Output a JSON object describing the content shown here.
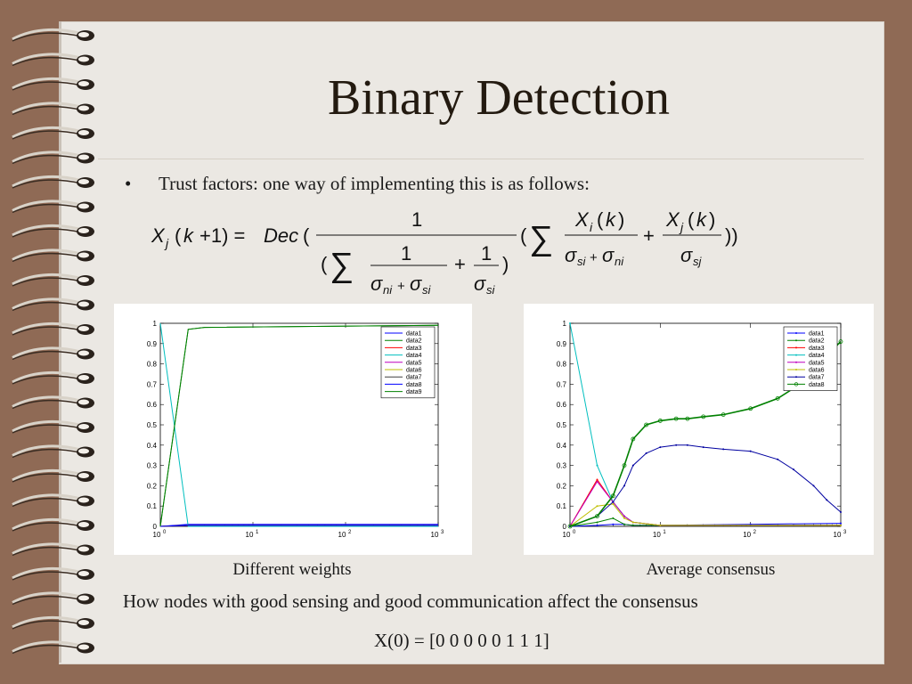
{
  "slide": {
    "title": "Binary Detection",
    "bullet": "Trust factors: one way of implementing this is as follows:",
    "bullet_marker": "•",
    "captions": [
      "Different weights",
      "Average consensus"
    ],
    "summary": "How nodes with good sensing and good communication affect the consensus",
    "initial_condition": "X(0) = [0 0 0 0 0 1 1 1]"
  },
  "colors": {
    "background": "#8f6a55",
    "paper": "#ebe8e3",
    "title": "#231a10"
  },
  "chart_data": [
    {
      "type": "line",
      "x_scale": "log",
      "xlim": [
        1,
        1000
      ],
      "ylim": [
        0,
        1
      ],
      "x_ticks": [
        "10^0",
        "10^1",
        "10^2",
        "10^3"
      ],
      "y_ticks": [
        "0",
        "0.1",
        "0.2",
        "0.3",
        "0.4",
        "0.5",
        "0.6",
        "0.7",
        "0.8",
        "0.9",
        "1"
      ],
      "legend_position": "top-right",
      "grid": false,
      "series": [
        {
          "name": "data1",
          "color": "#0000ff",
          "x": [
            1,
            2,
            1000
          ],
          "y": [
            0,
            0.01,
            0.01
          ]
        },
        {
          "name": "data2",
          "color": "#008000",
          "x": [
            1,
            2,
            3,
            1000
          ],
          "y": [
            0,
            0.97,
            0.98,
            0.99
          ]
        },
        {
          "name": "data3",
          "color": "#ff0000",
          "x": [
            1,
            2,
            1000
          ],
          "y": [
            0,
            0.005,
            0.005
          ]
        },
        {
          "name": "data4",
          "color": "#00bfbf",
          "x": [
            1,
            2,
            1000
          ],
          "y": [
            1,
            0,
            0
          ]
        },
        {
          "name": "data5",
          "color": "#bf00bf",
          "x": [
            1,
            2,
            1000
          ],
          "y": [
            0,
            0.005,
            0.005
          ]
        },
        {
          "name": "data6",
          "color": "#bfbf00",
          "x": [
            1,
            2,
            1000
          ],
          "y": [
            0,
            0.005,
            0.005
          ]
        },
        {
          "name": "data7",
          "color": "#404040",
          "x": [
            1,
            2,
            1000
          ],
          "y": [
            0,
            0.005,
            0.005
          ]
        },
        {
          "name": "data8",
          "color": "#0000ff",
          "x": [
            1,
            2,
            1000
          ],
          "y": [
            0,
            0.005,
            0.005
          ]
        },
        {
          "name": "data9",
          "color": "#008000",
          "x": [
            1,
            2,
            3,
            1000
          ],
          "y": [
            0,
            0.97,
            0.98,
            0.99
          ]
        }
      ]
    },
    {
      "type": "line",
      "x_scale": "log",
      "xlim": [
        1,
        1000
      ],
      "ylim": [
        0,
        1
      ],
      "x_ticks": [
        "10^0",
        "10^1",
        "10^2",
        "10^3"
      ],
      "y_ticks": [
        "0",
        "0.1",
        "0.2",
        "0.3",
        "0.4",
        "0.5",
        "0.6",
        "0.7",
        "0.8",
        "0.9",
        "1"
      ],
      "legend_position": "top-right",
      "grid": false,
      "series": [
        {
          "name": "data1",
          "color": "#0000ff",
          "marker": "dot",
          "x": [
            1,
            2,
            3,
            4,
            5,
            10,
            100,
            1000
          ],
          "y": [
            0,
            0.005,
            0.01,
            0.01,
            0.005,
            0.005,
            0.01,
            0.015
          ]
        },
        {
          "name": "data2",
          "color": "#008000",
          "marker": "dot",
          "x": [
            1,
            2,
            3,
            4,
            5,
            10,
            1000
          ],
          "y": [
            0,
            0.02,
            0.04,
            0.01,
            0.005,
            0.005,
            0.005
          ]
        },
        {
          "name": "data3",
          "color": "#ff0000",
          "marker": "dot",
          "x": [
            1,
            2,
            3,
            4,
            5,
            10,
            1000
          ],
          "y": [
            0,
            0.23,
            0.12,
            0.05,
            0.02,
            0.005,
            0.005
          ]
        },
        {
          "name": "data4",
          "color": "#00bfbf",
          "marker": "dot",
          "x": [
            1,
            2,
            3,
            4,
            5,
            10,
            1000
          ],
          "y": [
            1,
            0.3,
            0.12,
            0.05,
            0.02,
            0.005,
            0.005
          ]
        },
        {
          "name": "data5",
          "color": "#bf00bf",
          "marker": "dot",
          "x": [
            1,
            2,
            3,
            4,
            5,
            10,
            1000
          ],
          "y": [
            0,
            0.22,
            0.12,
            0.05,
            0.02,
            0.005,
            0.005
          ]
        },
        {
          "name": "data6",
          "color": "#bfbf00",
          "marker": "dot",
          "x": [
            1,
            2,
            3,
            4,
            5,
            10,
            1000
          ],
          "y": [
            0,
            0.1,
            0.11,
            0.04,
            0.02,
            0.005,
            0.005
          ]
        },
        {
          "name": "data7",
          "color": "#0000a0",
          "marker": "dot",
          "x": [
            1,
            2,
            3,
            4,
            5,
            7,
            10,
            15,
            20,
            30,
            50,
            100,
            200,
            300,
            500,
            700,
            1000
          ],
          "y": [
            0,
            0.05,
            0.12,
            0.2,
            0.3,
            0.36,
            0.39,
            0.4,
            0.4,
            0.39,
            0.38,
            0.37,
            0.33,
            0.28,
            0.2,
            0.13,
            0.07
          ]
        },
        {
          "name": "data8",
          "color": "#008000",
          "marker": "circle",
          "x": [
            1,
            2,
            3,
            4,
            5,
            7,
            10,
            15,
            20,
            30,
            50,
            100,
            200,
            300,
            500,
            700,
            1000
          ],
          "y": [
            0,
            0.05,
            0.15,
            0.3,
            0.43,
            0.5,
            0.52,
            0.53,
            0.53,
            0.54,
            0.55,
            0.58,
            0.63,
            0.68,
            0.76,
            0.84,
            0.91
          ]
        }
      ]
    }
  ]
}
